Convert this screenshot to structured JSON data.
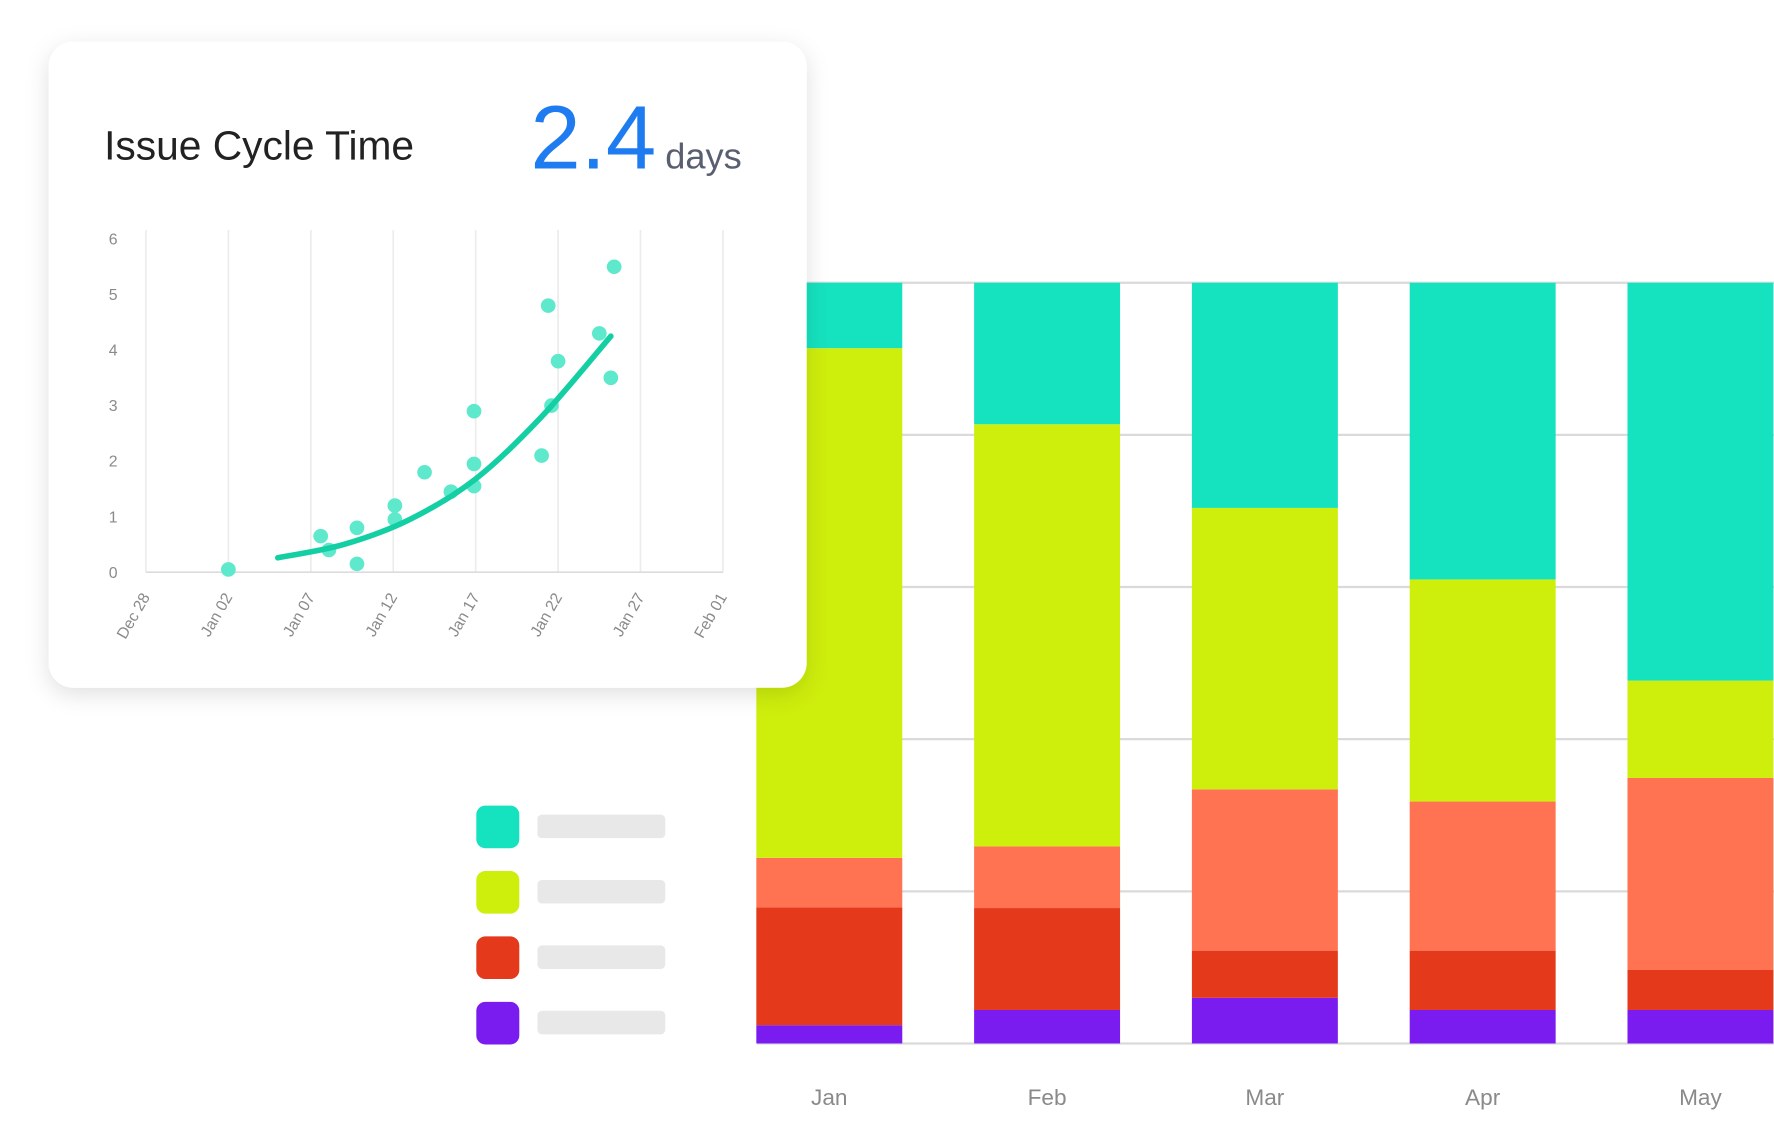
{
  "chart_data": [
    {
      "type": "scatter",
      "title": "Issue Cycle Time",
      "kpi": {
        "value": 2.4,
        "unit": "days"
      },
      "color": "#5ee8cc",
      "x": [
        5,
        10.6,
        11.1,
        12.8,
        12.8,
        15.1,
        15.1,
        16.9,
        18.5,
        19.9,
        19.9,
        19.9,
        24.0,
        24.4,
        24.6,
        25.0,
        27.5,
        28.2,
        28.4
      ],
      "values": [
        0.05,
        0.65,
        0.4,
        0.8,
        0.15,
        1.2,
        0.95,
        1.8,
        1.45,
        2.9,
        1.95,
        1.55,
        2.1,
        4.8,
        3.0,
        3.8,
        4.3,
        3.5,
        5.5
      ],
      "trend": {
        "color": "#14cfa4",
        "x": [
          8,
          12,
          16,
          20,
          24,
          28.2
        ],
        "y": [
          0.26,
          0.5,
          0.95,
          1.68,
          2.8,
          4.25
        ]
      },
      "xlim": [
        0,
        35
      ],
      "xticks": [
        {
          "value": 0,
          "label": "Dec 28"
        },
        {
          "value": 5,
          "label": "Jan 02"
        },
        {
          "value": 10,
          "label": "Jan 07"
        },
        {
          "value": 15,
          "label": "Jan 12"
        },
        {
          "value": 20,
          "label": "Jan 17"
        },
        {
          "value": 25,
          "label": "Jan 22"
        },
        {
          "value": 30,
          "label": "Jan 27"
        },
        {
          "value": 35,
          "label": "Feb 01"
        }
      ],
      "ylim": [
        0,
        6
      ],
      "yticks": [
        0,
        1,
        2,
        3,
        4,
        5,
        6
      ],
      "grid": true
    },
    {
      "type": "stacked_bar",
      "categories": [
        "Jan",
        "Feb",
        "Mar",
        "Apr",
        "May"
      ],
      "series": [
        {
          "color": "#7a1cf0",
          "values": [
            2.4,
            4.4,
            6.0,
            4.4,
            4.4
          ]
        },
        {
          "color": "#e5391c",
          "values": [
            15.5,
            13.4,
            6.2,
            7.8,
            5.3
          ]
        },
        {
          "color": "#ff7252",
          "values": [
            6.5,
            8.1,
            21.2,
            19.6,
            25.2
          ]
        },
        {
          "color": "#ceee0c",
          "values": [
            67.0,
            55.5,
            37.0,
            29.2,
            12.8
          ]
        },
        {
          "color": "#15e2bf",
          "values": [
            8.6,
            18.6,
            29.6,
            39.0,
            52.3
          ]
        }
      ],
      "ylim": [
        0,
        100
      ],
      "yticks": [
        0,
        20,
        40,
        60,
        80,
        100
      ],
      "grid": true
    }
  ]
}
